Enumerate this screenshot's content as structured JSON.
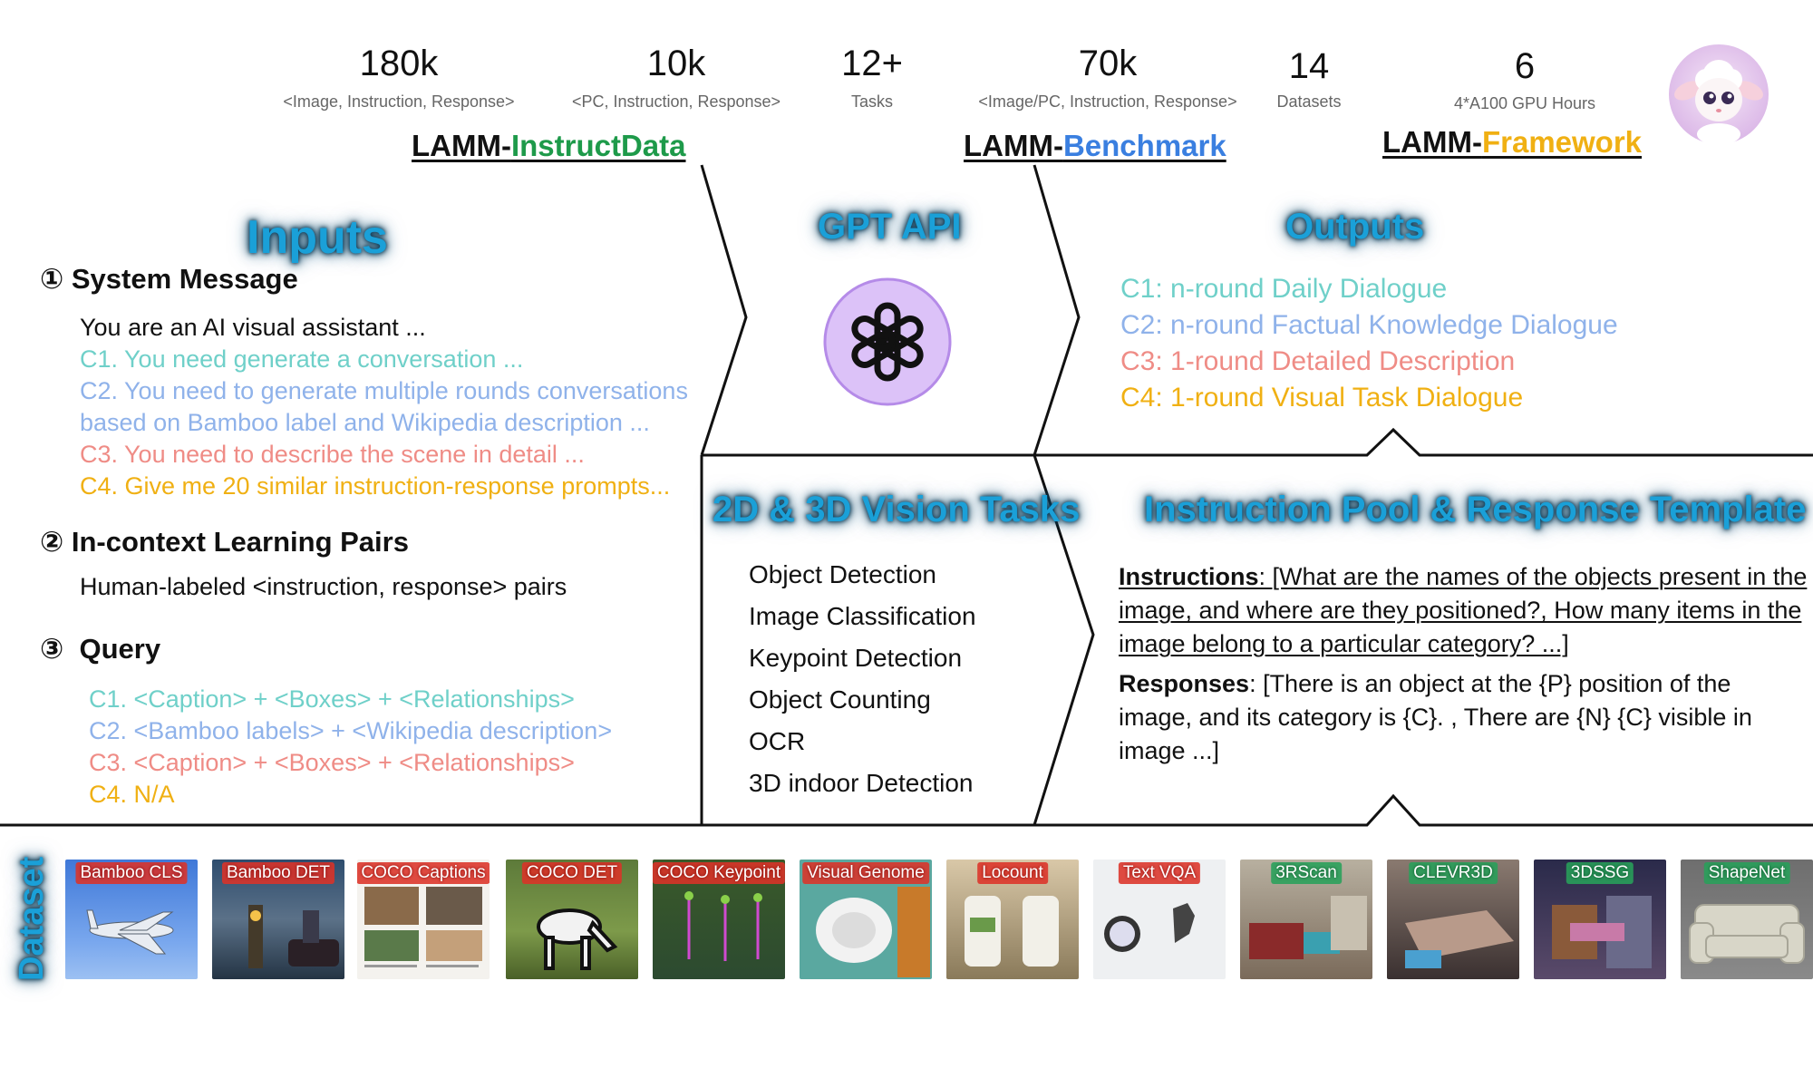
{
  "stats": [
    {
      "value": "180k",
      "sub": "<Image, Instruction, Response>"
    },
    {
      "value": "10k",
      "sub": "<PC, Instruction, Response>"
    },
    {
      "value": "12+",
      "sub": "Tasks"
    },
    {
      "value": "70k",
      "sub": "<Image/PC, Instruction, Response>"
    },
    {
      "value": "14",
      "sub": "Datasets"
    },
    {
      "value": "6",
      "sub": "4*A100 GPU Hours"
    }
  ],
  "lamm": {
    "prefix": "LAMM-",
    "instruct": "InstructData",
    "benchmark": "Benchmark",
    "framework": "Framework"
  },
  "sections": {
    "inputs": "Inputs",
    "gpt": "GPT API",
    "outputs": "Outputs",
    "vision": "2D & 3D Vision Tasks",
    "pool": "Instruction Pool & Response Template",
    "dataset": "Dataset"
  },
  "inputs": {
    "system_message": {
      "num": "①",
      "title": "System Message",
      "lines": [
        "You are an AI visual assistant ...",
        "C1. You need generate a conversation ...",
        "C2. You need to generate multiple rounds conversations",
        "based on Bamboo label and Wikipedia description ...",
        "C3. You need to describe the scene in detail ...",
        "C4. Give me 20 similar instruction-response prompts..."
      ]
    },
    "icl": {
      "num": "②",
      "title": "In-context Learning Pairs",
      "line": "Human-labeled <instruction, response> pairs"
    },
    "query": {
      "num": "③",
      "title": "Query",
      "lines": [
        "C1. <Caption> + <Boxes> + <Relationships>",
        "C2. <Bamboo labels> + <Wikipedia description>",
        "C3. <Caption> + <Boxes> + <Relationships>",
        "C4. N/A"
      ]
    }
  },
  "outputs": [
    "C1: n-round Daily Dialogue",
    "C2: n-round Factual Knowledge Dialogue",
    "C3: 1-round Detailed Description",
    "C4: 1-round Visual Task Dialogue"
  ],
  "tasks": [
    "Object Detection",
    "Image Classification",
    "Keypoint Detection",
    "Object Counting",
    "OCR",
    "3D indoor Detection"
  ],
  "pool": {
    "instructions_label": "Instructions",
    "instructions_text": ": [What are the names of the objects present in the image, and where are they positioned?,  How many items in the image belong to a particular category? ...]",
    "responses_label": "Responses",
    "responses_text": ": [There is an object at the {P} position of the image, and its category is {C}. , There are {N} {C} visible in image ...]"
  },
  "datasets": [
    "Bamboo CLS",
    "Bamboo DET",
    "COCO Captions",
    "COCO DET",
    "COCO Keypoint",
    "Visual Genome",
    "Locount",
    "Text VQA",
    "3RScan",
    "CLEVR3D",
    "3DSSG",
    "ShapeNet"
  ],
  "colors": {
    "c1": "#6fd0c9",
    "c2": "#8fb2ea",
    "c3": "#ef8c86",
    "c4": "#f0b013",
    "instruct": "#1e9a4a",
    "benchmark": "#3a7fe0",
    "framework": "#f0b013",
    "glow": "#1aa0d8"
  },
  "icons": {
    "gpt": "openai-logo-icon",
    "avatar": "lamb-mascot-icon"
  }
}
